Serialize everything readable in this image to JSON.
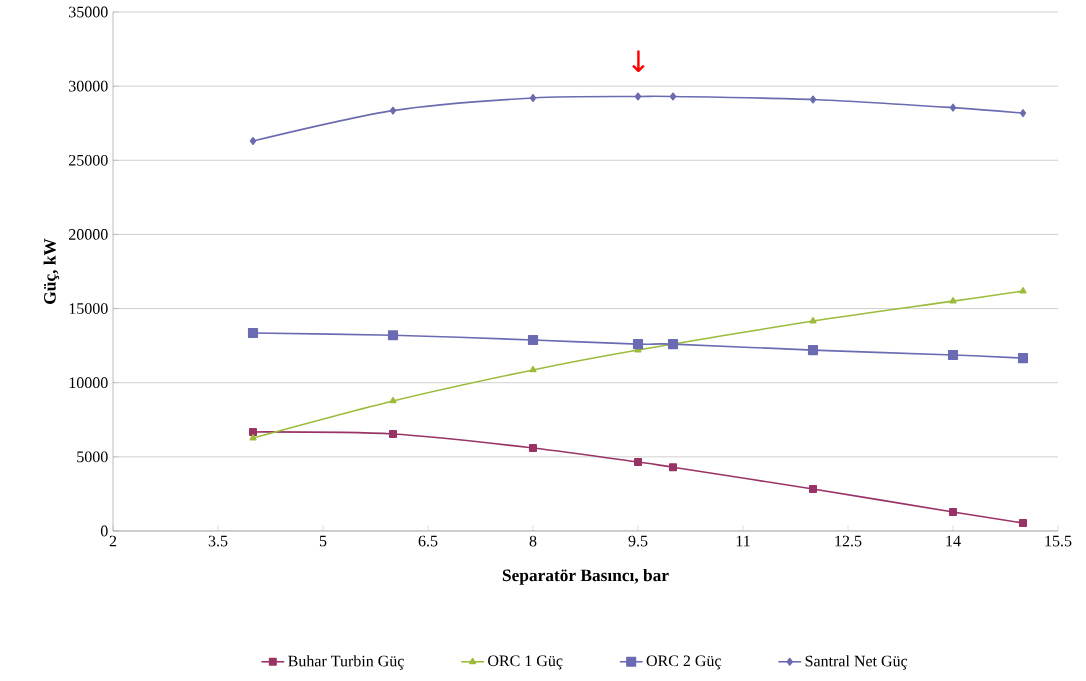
{
  "chart_data": {
    "type": "line",
    "xlabel": "Separatör Basıncı, bar",
    "ylabel": "Güç, kW",
    "xlim": [
      2,
      15.5
    ],
    "xticks": [
      2,
      3.5,
      5,
      6.5,
      8,
      9.5,
      11,
      12.5,
      14,
      15.5
    ],
    "ylim": [
      0,
      35000
    ],
    "yticks": [
      0,
      5000,
      10000,
      15000,
      20000,
      25000,
      30000,
      35000
    ],
    "grid": "y",
    "legend": "bottom",
    "annotations": [
      "↓"
    ],
    "series": [
      {
        "name": "Buhar Turbin Güç",
        "color": "#993366",
        "marker": "square",
        "x": [
          4,
          6,
          8,
          9.5,
          10,
          12,
          14,
          15
        ],
        "values": [
          6680,
          6540,
          5600,
          4650,
          4300,
          2830,
          1280,
          540
        ]
      },
      {
        "name": "ORC 1 Güç",
        "color": "#9bbb3b",
        "marker": "triangle",
        "x": [
          4,
          6,
          8,
          9.5,
          12,
          14,
          15
        ],
        "values": [
          6270,
          8770,
          10860,
          12200,
          14160,
          15500,
          16180
        ]
      },
      {
        "name": "ORC 2 Güç",
        "color": "#6b6bb3",
        "marker": "square",
        "x": [
          4,
          6,
          8,
          9.5,
          10,
          12,
          14,
          15
        ],
        "values": [
          13350,
          13200,
          12880,
          12600,
          12600,
          12200,
          11870,
          11660
        ]
      },
      {
        "name": "Santral Net Güç",
        "color": "#6b6bb0",
        "marker": "diamond",
        "x": [
          4,
          6,
          8,
          9.5,
          10,
          12,
          14,
          15
        ],
        "values": [
          26300,
          28350,
          29200,
          29300,
          29300,
          29100,
          28550,
          28180
        ]
      }
    ]
  }
}
